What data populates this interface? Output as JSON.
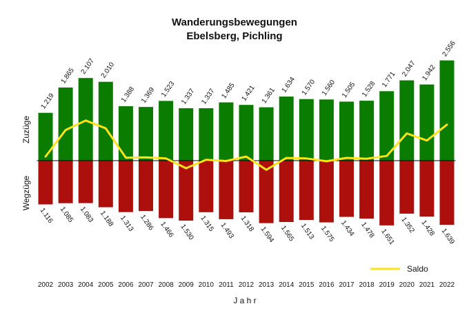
{
  "colors": {
    "zuzuege": "#0a7d00",
    "wegzuege": "#ad0f0c",
    "saldo": "#ffe31a",
    "zero_line": "#000000"
  },
  "chart_data": {
    "type": "bar",
    "title": "Wanderungsbewegungen",
    "subtitle": "Ebelsberg, Pichling",
    "xlabel": "J a h r",
    "ylabel_positive": "Zuzüge",
    "ylabel_negative": "Wegzüge",
    "categories": [
      "2002",
      "2003",
      "2004",
      "2005",
      "2006",
      "2007",
      "2008",
      "2009",
      "2010",
      "2011",
      "2012",
      "2013",
      "2014",
      "2015",
      "2016",
      "2017",
      "2018",
      "2019",
      "2020",
      "2021",
      "2022"
    ],
    "series": [
      {
        "key": "zuzuege",
        "values": [
          1219,
          1865,
          2107,
          2010,
          1388,
          1369,
          1523,
          1337,
          1337,
          1485,
          1421,
          1361,
          1634,
          1570,
          1560,
          1505,
          1528,
          1771,
          2047,
          1942,
          2556
        ],
        "labels": [
          "1.219",
          "1.865",
          "2.107",
          "2.010",
          "1.388",
          "1.369",
          "1.523",
          "1.337",
          "1.337",
          "1.485",
          "1.421",
          "1.361",
          "1.634",
          "1.570",
          "1.560",
          "1.505",
          "1.528",
          "1.771",
          "2.047",
          "1.942",
          "2.556"
        ]
      },
      {
        "key": "wegzuege",
        "values": [
          -1116,
          -1085,
          -1083,
          -1188,
          -1313,
          -1286,
          -1466,
          -1530,
          -1315,
          -1493,
          -1318,
          -1594,
          -1565,
          -1513,
          -1575,
          -1434,
          -1478,
          -1651,
          -1352,
          -1428,
          -1639
        ],
        "labels": [
          "1.116",
          "1.085",
          "1.083",
          "1.188",
          "1.313",
          "1.286",
          "1.466",
          "1.530",
          "1.315",
          "1.493",
          "1.318",
          "1.594",
          "1.565",
          "1.513",
          "1.575",
          "1.434",
          "1.478",
          "1.651",
          "1.352",
          "1.428",
          "1.639"
        ]
      },
      {
        "key": "saldo",
        "name": "Saldo",
        "type": "line",
        "values": [
          103,
          780,
          1024,
          822,
          75,
          83,
          57,
          -193,
          22,
          -8,
          103,
          -233,
          69,
          57,
          -15,
          71,
          50,
          120,
          695,
          514,
          917
        ]
      }
    ],
    "ylim": [
      -2000,
      2750
    ],
    "grid": false,
    "legend_position": "bottom-right"
  }
}
